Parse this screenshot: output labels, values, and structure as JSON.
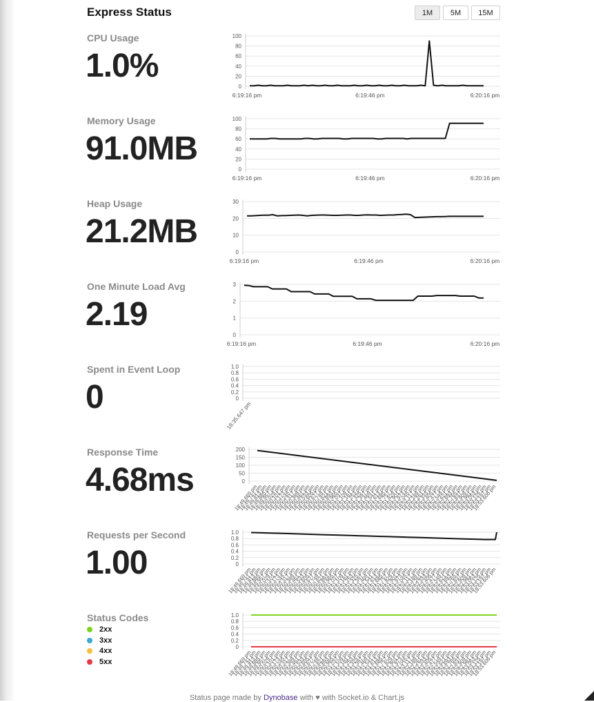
{
  "header": {
    "title": "Express Status"
  },
  "span_buttons": [
    {
      "label": "1M",
      "active": true
    },
    {
      "label": "5M",
      "active": false
    },
    {
      "label": "15M",
      "active": false
    }
  ],
  "metrics": {
    "cpu": {
      "label": "CPU Usage",
      "value": "1.0%"
    },
    "memory": {
      "label": "Memory Usage",
      "value": "91.0MB"
    },
    "heap": {
      "label": "Heap Usage",
      "value": "21.2MB"
    },
    "load": {
      "label": "One Minute Load Avg",
      "value": "2.19"
    },
    "eventloop": {
      "label": "Spent in Event Loop",
      "value": "0"
    },
    "response": {
      "label": "Response Time",
      "value": "4.68ms"
    },
    "rps": {
      "label": "Requests per Second",
      "value": "1.00"
    },
    "status": {
      "label": "Status Codes"
    }
  },
  "status_legend": [
    {
      "label": "2xx",
      "color": "#7ed321"
    },
    {
      "label": "3xx",
      "color": "#3fa7d6"
    },
    {
      "label": "4xx",
      "color": "#f5c043"
    },
    {
      "label": "5xx",
      "color": "#e63946"
    }
  ],
  "footer": {
    "prefix": "Status page made by",
    "link": "Dynobase",
    "suffix": "with ♥ with Socket.io & Chart.js"
  },
  "chart_data": [
    {
      "id": "cpu",
      "type": "line",
      "ylim": [
        0,
        100
      ],
      "yticks": [
        0,
        20,
        40,
        60,
        80,
        100
      ],
      "xticks": [
        "6:19:16 pm",
        "6:19:46 pm",
        "6:20:16 pm"
      ],
      "series": [
        {
          "values": [
            1,
            1,
            2,
            1,
            1,
            2,
            1,
            1,
            1,
            2,
            1,
            1,
            1,
            2,
            1,
            2,
            1,
            1,
            2,
            1,
            1,
            2,
            1,
            1,
            1,
            2,
            1,
            1,
            2,
            1,
            1,
            2,
            1,
            1,
            2,
            1,
            1,
            2,
            1,
            1,
            1,
            2,
            1,
            90,
            2,
            1,
            2,
            1,
            1,
            1,
            1,
            2,
            1,
            1,
            1,
            1,
            1
          ]
        }
      ]
    },
    {
      "id": "memory",
      "type": "line",
      "ylim": [
        0,
        100
      ],
      "yticks": [
        0,
        20,
        40,
        60,
        80,
        100
      ],
      "xticks": [
        "6:19:16 pm",
        "6:19:46 pm",
        "6:20:16 pm"
      ],
      "series": [
        {
          "values": [
            60,
            60,
            60,
            60,
            60,
            61,
            61,
            60,
            60,
            60,
            60,
            60,
            60,
            61,
            61,
            60,
            60,
            61,
            61,
            61,
            61,
            61,
            60,
            60,
            61,
            61,
            61,
            61,
            61,
            61,
            60,
            60,
            61,
            61,
            61,
            61,
            61,
            60,
            61,
            61,
            61,
            61,
            61,
            61,
            61,
            61,
            61,
            91,
            91,
            91,
            91,
            91,
            91,
            91,
            91,
            91
          ]
        }
      ]
    },
    {
      "id": "heap",
      "type": "line",
      "ylim": [
        0,
        30
      ],
      "yticks": [
        0,
        10,
        20,
        30
      ],
      "xticks": [
        "6:19:16 pm",
        "6:19:46 pm",
        "6:20:16 pm"
      ],
      "series": [
        {
          "values": [
            21.5,
            21.5,
            21.6,
            21.8,
            21.9,
            21.9,
            22.2,
            21.5,
            21.6,
            21.7,
            21.8,
            21.9,
            22.0,
            21.8,
            21.5,
            21.8,
            21.9,
            22.0,
            22.0,
            21.9,
            21.8,
            21.8,
            21.9,
            22.0,
            22.0,
            21.8,
            21.8,
            22.0,
            22.1,
            22.0,
            22.0,
            21.8,
            21.9,
            22.0,
            22.0,
            22.2,
            22.3,
            22.5,
            22.2,
            20.5,
            20.6,
            20.7,
            20.8,
            20.9,
            21.0,
            21.0,
            21.1,
            21.2,
            21.2,
            21.2,
            21.2,
            21.2,
            21.2,
            21.2,
            21.2,
            21.2
          ]
        }
      ]
    },
    {
      "id": "load",
      "type": "line",
      "ylim": [
        0,
        3
      ],
      "yticks": [
        0,
        1,
        2,
        3
      ],
      "xticks": [
        "6:19:16 pm",
        "6:19:46 pm",
        "6:20:16 pm"
      ],
      "series": [
        {
          "values": [
            2.95,
            2.93,
            2.86,
            2.86,
            2.86,
            2.86,
            2.73,
            2.73,
            2.73,
            2.73,
            2.57,
            2.57,
            2.57,
            2.57,
            2.57,
            2.43,
            2.43,
            2.43,
            2.43,
            2.29,
            2.29,
            2.29,
            2.29,
            2.29,
            2.14,
            2.14,
            2.14,
            2.14,
            2.05,
            2.05,
            2.05,
            2.05,
            2.05,
            2.05,
            2.05,
            2.05,
            2.05,
            2.3,
            2.3,
            2.3,
            2.3,
            2.34,
            2.34,
            2.34,
            2.34,
            2.34,
            2.3,
            2.3,
            2.3,
            2.3,
            2.19,
            2.19
          ]
        }
      ]
    },
    {
      "id": "eventloop",
      "type": "line",
      "ylim": [
        0,
        1
      ],
      "yticks": [
        "0",
        "0.2",
        "0.4",
        "0.6",
        "0.8",
        "1.0"
      ],
      "xticks": [
        "18:35.647 pm"
      ],
      "series": [
        {
          "values": []
        }
      ]
    },
    {
      "id": "response",
      "type": "line",
      "ylim": [
        0,
        200
      ],
      "yticks": [
        0,
        50,
        100,
        150,
        200
      ],
      "xticks": [
        "18:49.669 pm",
        "18:49.741 pm",
        "18:49.813 pm",
        "18:49.885 pm",
        "18:49.957 pm",
        "18:50.029 pm",
        "18:50.101 pm",
        "18:50.173 pm",
        "18:50.245 pm",
        "18:50.317 pm",
        "18:50.389 pm",
        "18:50.461 pm",
        "18:50.533 pm",
        "18:50.605 pm",
        "18:50.677 pm",
        "18:50.749 pm",
        "18:50.821 pm",
        "18:50.893 pm",
        "18:50.965 pm",
        "18:51.037 pm",
        "18:51.109 pm",
        "18:51.181 pm",
        "18:51.253 pm",
        "18:51.325 pm",
        "18:51.397 pm",
        "18:51.469 pm",
        "18:51.541 pm",
        "18:51.613 pm",
        "18:51.685 pm",
        "18:51.757 pm",
        "18:51.829 pm",
        "18:51.901 pm",
        "18:51.973 pm",
        "18:52.045 pm",
        "18:52.117 pm",
        "18:52.189 pm",
        "18:52.261 pm",
        "18:52.333 pm",
        "18:52.405 pm",
        "18:52.477 pm",
        "18:52.549 pm",
        "18:52.621 pm",
        "18:52.693 pm",
        "18:52.765 pm",
        "18:52.837 pm",
        "18:52.909 pm",
        "18:52.981 pm",
        "18:53.053 pm",
        "18:53.125 pm",
        "18:53.197 pm",
        "18:53.606 pm"
      ],
      "series": [
        {
          "values": [
            193,
            4.68
          ]
        }
      ]
    },
    {
      "id": "rps",
      "type": "line",
      "ylim": [
        0,
        1
      ],
      "yticks": [
        "0",
        "0.2",
        "0.4",
        "0.6",
        "0.8",
        "1.0"
      ],
      "xticks": [
        "18:49.669 pm",
        "18:49.741 pm",
        "18:49.813 pm",
        "18:49.885 pm",
        "18:49.957 pm",
        "18:50.029 pm",
        "18:50.101 pm",
        "18:50.173 pm",
        "18:50.245 pm",
        "18:50.317 pm",
        "18:50.389 pm",
        "18:50.461 pm",
        "18:50.533 pm",
        "18:50.605 pm",
        "18:50.677 pm",
        "18:50.749 pm",
        "18:50.821 pm",
        "18:50.893 pm",
        "18:50.965 pm",
        "18:51.037 pm",
        "18:51.109 pm",
        "18:51.181 pm",
        "18:51.253 pm",
        "18:51.325 pm",
        "18:51.397 pm",
        "18:51.469 pm",
        "18:51.541 pm",
        "18:51.613 pm",
        "18:51.685 pm",
        "18:51.757 pm",
        "18:51.829 pm",
        "18:51.901 pm",
        "18:51.973 pm",
        "18:52.045 pm",
        "18:52.117 pm",
        "18:52.189 pm",
        "18:52.261 pm",
        "18:52.333 pm",
        "18:52.405 pm",
        "18:52.477 pm",
        "18:52.549 pm",
        "18:52.621 pm",
        "18:52.693 pm",
        "18:52.765 pm",
        "18:52.837 pm",
        "18:52.909 pm",
        "18:52.981 pm",
        "18:53.053 pm",
        "18:53.125 pm",
        "18:53.197 pm",
        "18:53.606 pm"
      ],
      "series": [
        {
          "values": [
            0.99,
            0.98,
            0.97,
            0.96,
            0.95,
            0.94,
            0.93,
            0.92,
            0.91,
            0.9,
            0.89,
            0.88,
            0.87,
            0.86,
            0.85,
            0.84,
            0.83,
            0.82,
            0.81,
            0.8,
            0.79,
            0.78,
            0.77,
            0.77,
            1.0
          ]
        }
      ]
    },
    {
      "id": "status",
      "type": "line",
      "ylim": [
        0,
        1
      ],
      "yticks": [
        "0",
        "0.2",
        "0.4",
        "0.6",
        "0.8",
        "1.0"
      ],
      "xticks": [
        "18:49.669 pm",
        "18:49.741 pm",
        "18:49.813 pm",
        "18:49.885 pm",
        "18:49.957 pm",
        "18:50.029 pm",
        "18:50.101 pm",
        "18:50.173 pm",
        "18:50.245 pm",
        "18:50.317 pm",
        "18:50.389 pm",
        "18:50.461 pm",
        "18:50.533 pm",
        "18:50.605 pm",
        "18:50.677 pm",
        "18:50.749 pm",
        "18:50.821 pm",
        "18:50.893 pm",
        "18:50.965 pm",
        "18:51.037 pm",
        "18:51.109 pm",
        "18:51.181 pm",
        "18:51.253 pm",
        "18:51.325 pm",
        "18:51.397 pm",
        "18:51.469 pm",
        "18:51.541 pm",
        "18:51.613 pm",
        "18:51.685 pm",
        "18:51.757 pm",
        "18:51.829 pm",
        "18:51.901 pm",
        "18:51.973 pm",
        "18:52.045 pm",
        "18:52.117 pm",
        "18:52.189 pm",
        "18:52.261 pm",
        "18:52.333 pm",
        "18:52.405 pm",
        "18:52.477 pm",
        "18:52.549 pm",
        "18:52.621 pm",
        "18:52.693 pm",
        "18:52.765 pm",
        "18:52.837 pm",
        "18:52.909 pm",
        "18:52.981 pm",
        "18:53.053 pm",
        "18:53.125 pm",
        "18:53.197 pm",
        "18:53.606 pm"
      ],
      "series": [
        {
          "name": "2xx",
          "color": "#7ed321",
          "values": [
            1,
            1
          ]
        },
        {
          "name": "3xx",
          "color": "#3fa7d6",
          "values": [
            0,
            0
          ]
        },
        {
          "name": "4xx",
          "color": "#f5c043",
          "values": [
            0,
            0
          ]
        },
        {
          "name": "5xx",
          "color": "#e63946",
          "values": [
            0,
            0
          ]
        }
      ]
    }
  ]
}
